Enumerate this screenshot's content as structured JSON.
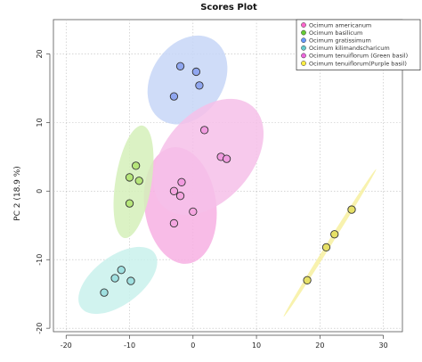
{
  "chart_data": {
    "type": "scatter",
    "title": "Scores Plot",
    "xlabel": "",
    "ylabel": "PC 2 (18.9 %)",
    "xlim": [
      -22,
      33
    ],
    "ylim": [
      -20.5,
      25
    ],
    "xticks": [
      -20,
      -10,
      0,
      10,
      20,
      30
    ],
    "yticks": [
      -20,
      -10,
      0,
      10,
      20
    ],
    "grid": true,
    "legend_position": "top-right",
    "series": [
      {
        "name": "Ocimum americanum",
        "color": "#ff66cc",
        "fill": "#f5a6e0",
        "ellipse_color": "#f7b0e3",
        "points": [
          [
            -3,
            -4.7
          ],
          [
            0,
            -3
          ],
          [
            -2,
            -0.7
          ],
          [
            -3,
            0
          ]
        ]
      },
      {
        "name": "Ocimum basilicum",
        "color": "#66cc33",
        "fill": "#b6e67a",
        "ellipse_color": "#d5f0ba",
        "points": [
          [
            -10,
            2
          ],
          [
            -9,
            3.7
          ],
          [
            -8.5,
            1.5
          ],
          [
            -10,
            -1.8
          ]
        ]
      },
      {
        "name": "Ocimum gratissimum",
        "color": "#6699ff",
        "fill": "#8fa6f0",
        "ellipse_color": "#c7d6f7",
        "points": [
          [
            -2,
            18.2
          ],
          [
            0.5,
            17.4
          ],
          [
            1,
            15.4
          ],
          [
            -3,
            13.8
          ]
        ]
      },
      {
        "name": "Ocimum kilimandscharicum",
        "color": "#66cccc",
        "fill": "#9fe0e0",
        "ellipse_color": "#c9f1ec",
        "points": [
          [
            -14,
            -14.8
          ],
          [
            -12.3,
            -12.7
          ],
          [
            -11.3,
            -11.5
          ],
          [
            -9.8,
            -13.1
          ]
        ]
      },
      {
        "name": "Ocimum tenuiflorum (Green basil)",
        "color": "#ee66dd",
        "fill": "#f19be0",
        "ellipse_color": "#f6bfe9",
        "points": [
          [
            1.8,
            8.9
          ],
          [
            4.4,
            5
          ],
          [
            5.3,
            4.7
          ],
          [
            -1.8,
            1.3
          ]
        ]
      },
      {
        "name": "Ocimum tenuiflorum(Purple basil)",
        "color": "#ffee44",
        "fill": "#e6e066",
        "ellipse_color": "#f7f0a0",
        "points": [
          [
            18,
            -13
          ],
          [
            21,
            -8.2
          ],
          [
            22.3,
            -6.3
          ],
          [
            25,
            -2.7
          ]
        ]
      }
    ]
  }
}
